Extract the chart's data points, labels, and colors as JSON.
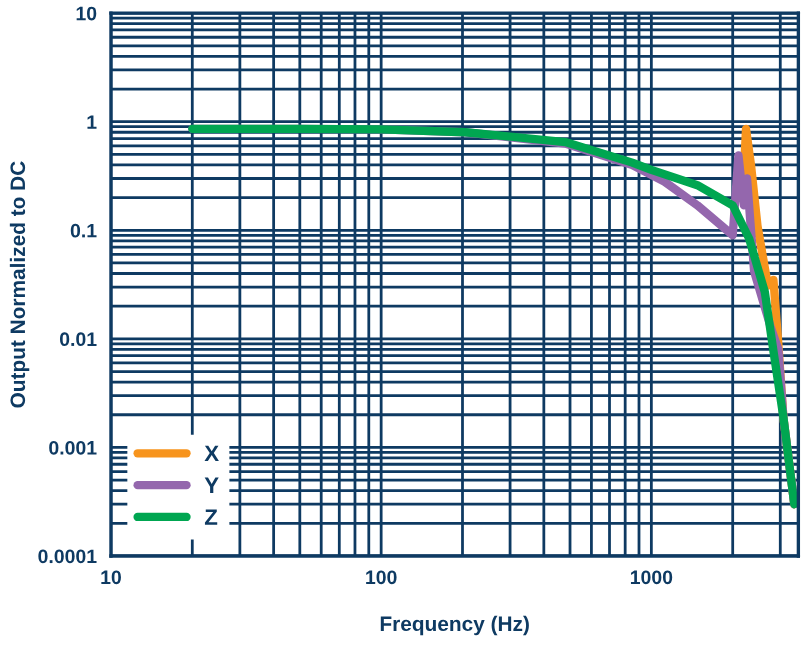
{
  "chart_data": {
    "type": "line",
    "xlabel": "Frequency (Hz)",
    "ylabel": "Output Normalized to DC",
    "log": "xy",
    "grid": true,
    "legend": "bottom left",
    "marker": "none",
    "line_style": "solid",
    "xlim": [
      10,
      3500
    ],
    "xticks": [
      10,
      100,
      1000
    ],
    "ylim": [
      0.0001,
      10
    ],
    "yticks": [
      0.0001,
      0.001,
      0.01,
      0.1,
      1,
      10
    ],
    "series": [
      {
        "name": "X",
        "color": "#f7941d",
        "x": [
          2180,
          2240,
          2340,
          2470,
          2700,
          2830,
          2950,
          3080,
          3380
        ],
        "values": [
          0.2,
          0.86,
          0.39,
          0.11,
          0.031,
          0.035,
          0.009,
          0.0019,
          0.0003
        ]
      },
      {
        "name": "Y",
        "color": "#9467ad",
        "x": [
          20,
          50,
          100,
          205,
          480,
          850,
          1120,
          1480,
          2000,
          2100,
          2200,
          2260,
          2400,
          2760,
          2950,
          3080,
          3380
        ],
        "values": [
          0.86,
          0.86,
          0.85,
          0.8,
          0.63,
          0.4,
          0.28,
          0.17,
          0.09,
          0.49,
          0.17,
          0.3,
          0.042,
          0.013,
          0.008,
          0.0019,
          0.0003
        ]
      },
      {
        "name": "Z",
        "color": "#00a651",
        "x": [
          20,
          50,
          100,
          205,
          480,
          850,
          1000,
          1480,
          2000,
          2300,
          2630,
          2830,
          3080,
          3380
        ],
        "values": [
          0.86,
          0.86,
          0.85,
          0.8,
          0.65,
          0.42,
          0.36,
          0.26,
          0.17,
          0.084,
          0.027,
          0.0077,
          0.0019,
          0.0003
        ]
      }
    ]
  }
}
